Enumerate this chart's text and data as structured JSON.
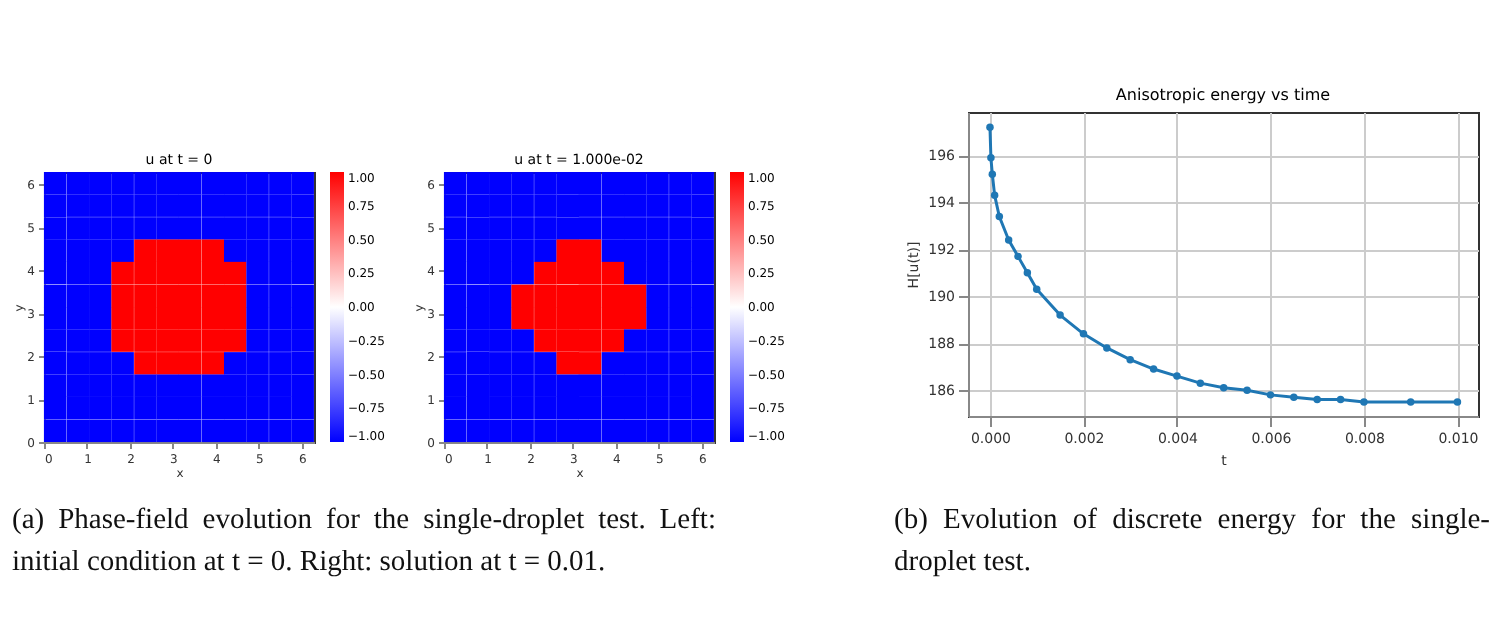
{
  "chart_data": [
    {
      "type": "heatmap",
      "title": "u at t = 0",
      "xlabel": "x",
      "ylabel": "y",
      "x": [
        0.26,
        0.79,
        1.31,
        1.83,
        2.36,
        2.88,
        3.4,
        3.93,
        4.45,
        4.97,
        5.5,
        6.02
      ],
      "y": [
        6.02,
        5.5,
        4.97,
        4.45,
        3.93,
        3.4,
        2.88,
        2.36,
        1.83,
        1.31,
        0.79,
        0.26
      ],
      "xlim": [
        0,
        6.283
      ],
      "ylim": [
        0,
        6.283
      ],
      "xticks": [
        0,
        1,
        2,
        3,
        4,
        5,
        6
      ],
      "yticks": [
        0,
        1,
        2,
        3,
        4,
        5,
        6
      ],
      "clim": [
        -1,
        1
      ],
      "cticks": [
        {
          "value": 1,
          "label": "1.00"
        },
        {
          "value": 0.75,
          "label": "0.75"
        },
        {
          "value": 0.5,
          "label": "0.50"
        },
        {
          "value": 0.25,
          "label": "0.25"
        },
        {
          "value": 0,
          "label": "0.00"
        },
        {
          "value": -0.25,
          "label": "−0.25"
        },
        {
          "value": -0.5,
          "label": "−0.50"
        },
        {
          "value": -0.75,
          "label": "−0.75"
        },
        {
          "value": -1,
          "label": "−1.00"
        }
      ],
      "cells": [
        [
          -1,
          -1,
          -1,
          -1,
          -1,
          -1,
          -1,
          -1,
          -1,
          -1,
          -1,
          -1
        ],
        [
          -1,
          -1,
          -1,
          -1,
          -1,
          -1,
          -1,
          -1,
          -1,
          -1,
          -1,
          -1
        ],
        [
          -1,
          -1,
          -1,
          -1,
          -1,
          -1,
          -1,
          -1,
          -1,
          -1,
          -1,
          -1
        ],
        [
          -1,
          -1,
          -1,
          -1,
          1,
          1,
          1,
          1,
          -1,
          -1,
          -1,
          -1
        ],
        [
          -1,
          -1,
          -1,
          1,
          1,
          1,
          1,
          1,
          1,
          -1,
          -1,
          -1
        ],
        [
          -1,
          -1,
          -1,
          1,
          1,
          1,
          1,
          1,
          1,
          -1,
          -1,
          -1
        ],
        [
          -1,
          -1,
          -1,
          1,
          1,
          1,
          1,
          1,
          1,
          -1,
          -1,
          -1
        ],
        [
          -1,
          -1,
          -1,
          1,
          1,
          1,
          1,
          1,
          1,
          -1,
          -1,
          -1
        ],
        [
          -1,
          -1,
          -1,
          -1,
          1,
          1,
          1,
          1,
          -1,
          -1,
          -1,
          -1
        ],
        [
          -1,
          -1,
          -1,
          -1,
          -1,
          -1,
          -1,
          -1,
          -1,
          -1,
          -1,
          -1
        ],
        [
          -1,
          -1,
          -1,
          -1,
          -1,
          -1,
          -1,
          -1,
          -1,
          -1,
          -1,
          -1
        ],
        [
          -1,
          -1,
          -1,
          -1,
          -1,
          -1,
          -1,
          -1,
          -1,
          -1,
          -1,
          -1
        ]
      ],
      "annotations": [
        "(a) Phase-field evolution for the single-droplet test. Left: initial condition at t = 0. Right: solution at t = 0.01."
      ]
    },
    {
      "type": "heatmap",
      "title": "u at t = 1.000e-02",
      "xlabel": "x",
      "ylabel": "y",
      "x": [
        0.26,
        0.79,
        1.31,
        1.83,
        2.36,
        2.88,
        3.4,
        3.93,
        4.45,
        4.97,
        5.5,
        6.02
      ],
      "y": [
        6.02,
        5.5,
        4.97,
        4.45,
        3.93,
        3.4,
        2.88,
        2.36,
        1.83,
        1.31,
        0.79,
        0.26
      ],
      "xlim": [
        0,
        6.283
      ],
      "ylim": [
        0,
        6.283
      ],
      "xticks": [
        0,
        1,
        2,
        3,
        4,
        5,
        6
      ],
      "yticks": [
        0,
        1,
        2,
        3,
        4,
        5,
        6
      ],
      "clim": [
        -1,
        1
      ],
      "cticks": [
        {
          "value": 1,
          "label": "1.00"
        },
        {
          "value": 0.75,
          "label": "0.75"
        },
        {
          "value": 0.5,
          "label": "0.50"
        },
        {
          "value": 0.25,
          "label": "0.25"
        },
        {
          "value": 0,
          "label": "0.00"
        },
        {
          "value": -0.25,
          "label": "−0.25"
        },
        {
          "value": -0.5,
          "label": "−0.50"
        },
        {
          "value": -0.75,
          "label": "−0.75"
        },
        {
          "value": -1,
          "label": "−1.00"
        }
      ],
      "cells": [
        [
          -1,
          -1,
          -1,
          -1,
          -1,
          -1,
          -1,
          -1,
          -1,
          -1,
          -1,
          -1
        ],
        [
          -1,
          -1,
          -1,
          -1,
          -1,
          -1,
          -1,
          -1,
          -1,
          -1,
          -1,
          -1
        ],
        [
          -1,
          -1,
          -1,
          -1,
          -1,
          -1,
          -1,
          -1,
          -1,
          -1,
          -1,
          -1
        ],
        [
          -1,
          -1,
          -1,
          -1,
          -1,
          1,
          1,
          -1,
          -1,
          -1,
          -1,
          -1
        ],
        [
          -1,
          -1,
          -1,
          -1,
          1,
          1,
          1,
          1,
          -1,
          -1,
          -1,
          -1
        ],
        [
          -1,
          -1,
          -1,
          1,
          1,
          1,
          1,
          1,
          1,
          -1,
          -1,
          -1
        ],
        [
          -1,
          -1,
          -1,
          1,
          1,
          1,
          1,
          1,
          1,
          -1,
          -1,
          -1
        ],
        [
          -1,
          -1,
          -1,
          -1,
          1,
          1,
          1,
          1,
          -1,
          -1,
          -1,
          -1
        ],
        [
          -1,
          -1,
          -1,
          -1,
          -1,
          1,
          1,
          -1,
          -1,
          -1,
          -1,
          -1
        ],
        [
          -1,
          -1,
          -1,
          -1,
          -1,
          -1,
          -1,
          -1,
          -1,
          -1,
          -1,
          -1
        ],
        [
          -1,
          -1,
          -1,
          -1,
          -1,
          -1,
          -1,
          -1,
          -1,
          -1,
          -1,
          -1
        ],
        [
          -1,
          -1,
          -1,
          -1,
          -1,
          -1,
          -1,
          -1,
          -1,
          -1,
          -1,
          -1
        ]
      ]
    },
    {
      "type": "line",
      "title": "Anisotropic energy vs time",
      "xlabel": "t",
      "ylabel": "H[u(t)]",
      "x": [
        0,
        2e-05,
        5e-05,
        0.0001,
        0.0002,
        0.0004,
        0.0006,
        0.0008,
        0.001,
        0.0015,
        0.002,
        0.0025,
        0.003,
        0.0035,
        0.004,
        0.0045,
        0.005,
        0.0055,
        0.006,
        0.0065,
        0.007,
        0.0075,
        0.008,
        0.009,
        0.01
      ],
      "series": [
        {
          "color": "#1f77b4",
          "values": [
            197.2,
            195.9,
            195.2,
            194.3,
            193.4,
            192.4,
            191.7,
            191.0,
            190.3,
            189.2,
            188.4,
            187.8,
            187.3,
            186.9,
            186.6,
            186.3,
            186.1,
            186.0,
            185.8,
            185.7,
            185.6,
            185.6,
            185.5,
            185.5,
            185.5
          ]
        }
      ],
      "xlim": [
        -0.00047,
        0.01044
      ],
      "ylim": [
        184.9,
        197.85
      ],
      "xticks": [
        {
          "value": 0,
          "label": "0.000"
        },
        {
          "value": 0.002,
          "label": "0.002"
        },
        {
          "value": 0.004,
          "label": "0.004"
        },
        {
          "value": 0.006,
          "label": "0.006"
        },
        {
          "value": 0.008,
          "label": "0.008"
        },
        {
          "value": 0.01,
          "label": "0.010"
        }
      ],
      "yticks": [
        186,
        188,
        190,
        192,
        194,
        196
      ],
      "grid": true,
      "marker": "circle",
      "line_style": "solid",
      "annotations": [
        "(b) Evolution of discrete energy for the single-droplet test."
      ]
    }
  ]
}
